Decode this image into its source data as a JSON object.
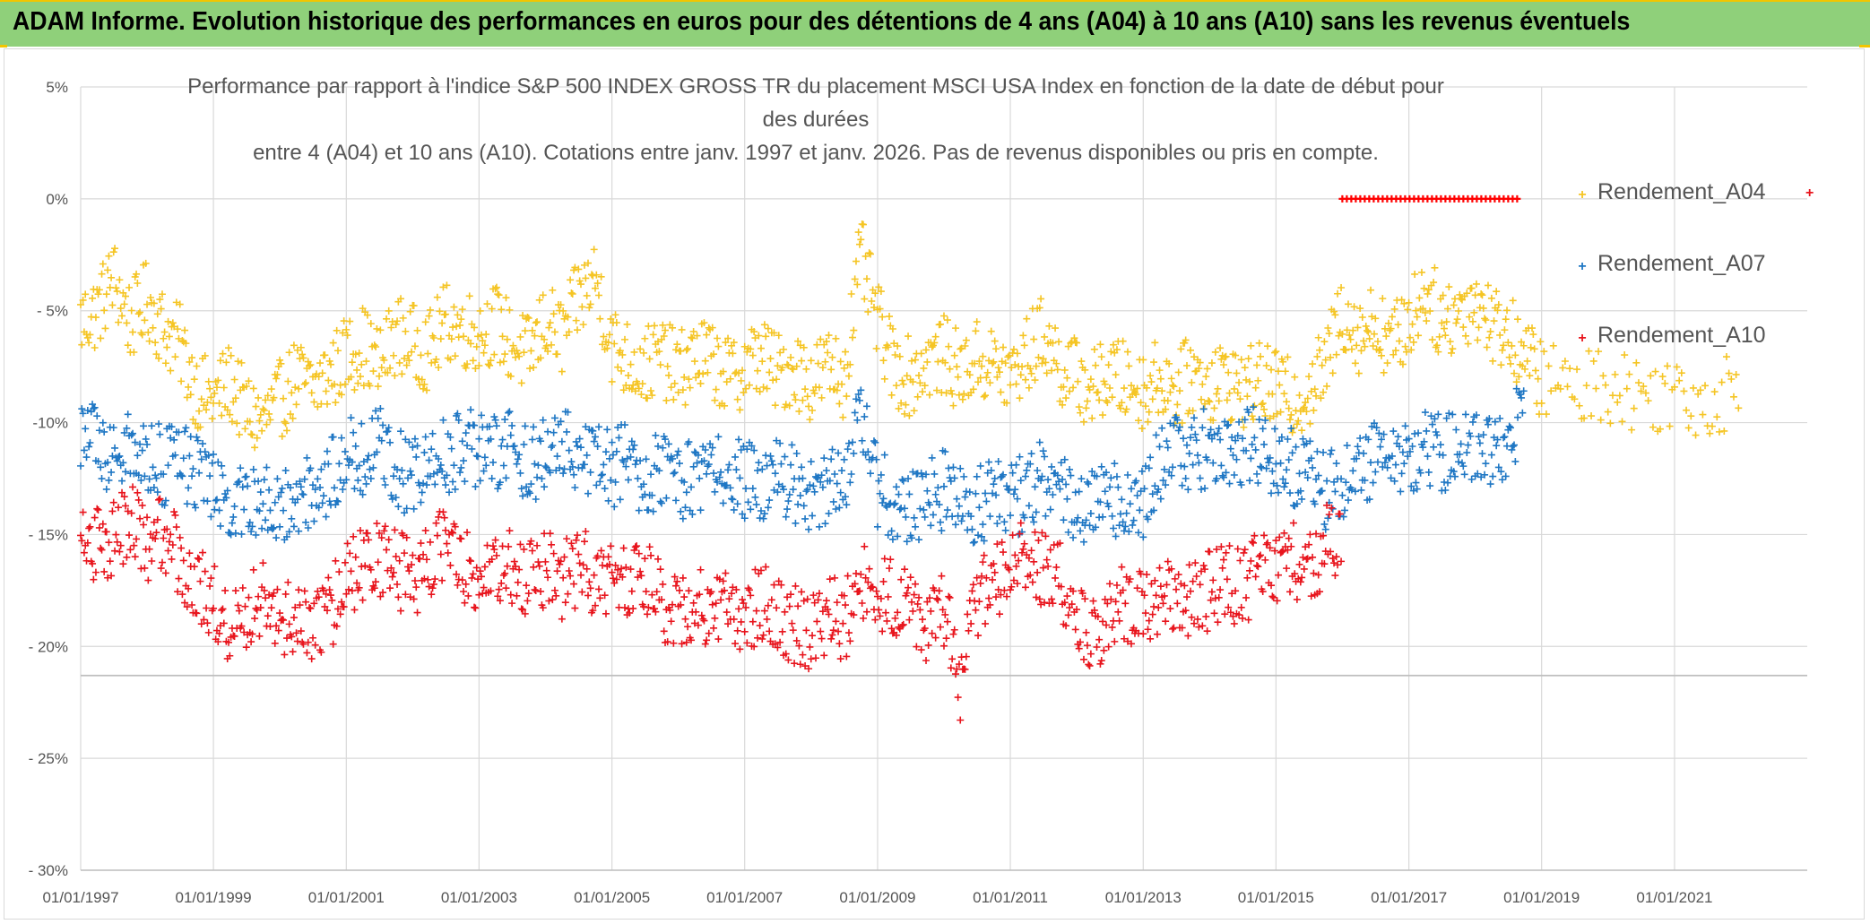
{
  "banner": {
    "title": "ADAM Informe. Evolution historique des performances en euros pour des détentions de 4 ans (A04) à 10 ans (A10) sans les revenus éventuels"
  },
  "chart_data": {
    "type": "scatter",
    "title_line1": "Performance par rapport à l'indice S&P 500 INDEX GROSS TR  du placement MSCI USA Index en fonction de la date de début pour des durées",
    "title_line2": "entre 4 (A04) et 10 ans (A10). Cotations entre janv. 1997 et janv. 2026. Pas de revenus disponibles ou pris en compte.",
    "xlabel": "",
    "ylabel": "",
    "xlim": [
      "1997-01-01",
      "2023-01-01"
    ],
    "ylim": [
      -30,
      5
    ],
    "x_tick_labels": [
      "01/01/1997",
      "01/01/1999",
      "01/01/2001",
      "01/01/2003",
      "01/01/2005",
      "01/01/2007",
      "01/01/2009",
      "01/01/2011",
      "01/01/2013",
      "01/01/2015",
      "01/01/2017",
      "01/01/2019",
      "01/01/2021"
    ],
    "y_ticks": [
      5,
      0,
      -5,
      -10,
      -15,
      -20,
      -25,
      -30
    ],
    "y_tick_labels": [
      "5%",
      "0%",
      "- 5%",
      "-10%",
      "- 15%",
      "- 20%",
      "- 25%",
      "- 30%"
    ],
    "grid": true,
    "legend_position": "top-right",
    "series": [
      {
        "name": "Rendement_A04",
        "color": "#f5c525",
        "marker": "+",
        "points": [
          [
            "1997-01-01",
            -5.5
          ],
          [
            "1997-04-01",
            -5.0
          ],
          [
            "1997-07-01",
            -3.5
          ],
          [
            "1997-10-01",
            -5.5
          ],
          [
            "1998-01-01",
            -4.5
          ],
          [
            "1998-04-01",
            -5.8
          ],
          [
            "1998-07-01",
            -6.5
          ],
          [
            "1998-10-01",
            -8.5
          ],
          [
            "1999-01-01",
            -9.0
          ],
          [
            "1999-04-01",
            -8.2
          ],
          [
            "1999-07-01",
            -9.5
          ],
          [
            "1999-10-01",
            -10.0
          ],
          [
            "2000-01-01",
            -9.0
          ],
          [
            "2000-04-01",
            -8.0
          ],
          [
            "2000-07-01",
            -8.5
          ],
          [
            "2000-10-01",
            -7.8
          ],
          [
            "2001-01-01",
            -7.0
          ],
          [
            "2001-04-01",
            -6.5
          ],
          [
            "2001-07-01",
            -7.5
          ],
          [
            "2001-10-01",
            -6.0
          ],
          [
            "2002-01-01",
            -6.5
          ],
          [
            "2002-04-01",
            -6.8
          ],
          [
            "2002-07-01",
            -5.5
          ],
          [
            "2002-10-01",
            -5.8
          ],
          [
            "2003-01-01",
            -6.0
          ],
          [
            "2003-04-01",
            -5.5
          ],
          [
            "2003-07-01",
            -6.5
          ],
          [
            "2003-10-01",
            -7.0
          ],
          [
            "2004-01-01",
            -5.5
          ],
          [
            "2004-04-01",
            -6.2
          ],
          [
            "2004-07-01",
            -4.5
          ],
          [
            "2004-10-01",
            -3.5
          ],
          [
            "2005-01-01",
            -6.5
          ],
          [
            "2005-04-01",
            -7.2
          ],
          [
            "2005-07-01",
            -7.5
          ],
          [
            "2005-10-01",
            -7.0
          ],
          [
            "2006-01-01",
            -7.8
          ],
          [
            "2006-04-01",
            -7.0
          ],
          [
            "2006-07-01",
            -7.2
          ],
          [
            "2006-10-01",
            -8.0
          ],
          [
            "2007-01-01",
            -7.5
          ],
          [
            "2007-04-01",
            -7.0
          ],
          [
            "2007-07-01",
            -7.8
          ],
          [
            "2007-10-01",
            -7.5
          ],
          [
            "2008-01-01",
            -8.2
          ],
          [
            "2008-04-01",
            -7.5
          ],
          [
            "2008-07-01",
            -8.0
          ],
          [
            "2008-10-01",
            -2.5
          ],
          [
            "2009-01-01",
            -5.5
          ],
          [
            "2009-04-01",
            -7.5
          ],
          [
            "2009-07-01",
            -8.0
          ],
          [
            "2009-10-01",
            -7.2
          ],
          [
            "2010-01-01",
            -7.0
          ],
          [
            "2010-04-01",
            -7.8
          ],
          [
            "2010-07-01",
            -7.2
          ],
          [
            "2010-10-01",
            -7.5
          ],
          [
            "2011-01-01",
            -8.0
          ],
          [
            "2011-04-01",
            -7.0
          ],
          [
            "2011-07-01",
            -6.0
          ],
          [
            "2011-10-01",
            -7.5
          ],
          [
            "2012-01-01",
            -8.0
          ],
          [
            "2012-04-01",
            -8.5
          ],
          [
            "2012-07-01",
            -7.8
          ],
          [
            "2012-10-01",
            -8.2
          ],
          [
            "2013-01-01",
            -8.5
          ],
          [
            "2013-04-01",
            -8.0
          ],
          [
            "2013-07-01",
            -8.5
          ],
          [
            "2013-10-01",
            -7.8
          ],
          [
            "2014-01-01",
            -8.2
          ],
          [
            "2014-04-01",
            -8.0
          ],
          [
            "2014-07-01",
            -8.5
          ],
          [
            "2014-10-01",
            -8.2
          ],
          [
            "2015-01-01",
            -8.5
          ],
          [
            "2015-04-01",
            -9.0
          ],
          [
            "2015-07-01",
            -8.5
          ],
          [
            "2015-10-01",
            -7.5
          ],
          [
            "2016-01-01",
            -5.0
          ],
          [
            "2016-04-01",
            -6.0
          ],
          [
            "2016-07-01",
            -5.5
          ],
          [
            "2016-10-01",
            -6.5
          ],
          [
            "2017-01-01",
            -5.5
          ],
          [
            "2017-04-01",
            -4.0
          ],
          [
            "2017-07-01",
            -5.5
          ],
          [
            "2017-10-01",
            -5.0
          ],
          [
            "2018-01-01",
            -4.5
          ],
          [
            "2018-04-01",
            -5.5
          ],
          [
            "2018-07-01",
            -6.0
          ],
          [
            "2018-10-01",
            -7.0
          ],
          [
            "2019-01-01",
            -8.0
          ],
          [
            "2019-07-01",
            -8.5
          ],
          [
            "2020-01-01",
            -8.2
          ],
          [
            "2020-07-01",
            -8.8
          ],
          [
            "2021-01-01",
            -8.5
          ],
          [
            "2021-07-01",
            -9.0
          ],
          [
            "2022-01-01",
            -8.5
          ]
        ]
      },
      {
        "name": "Rendement_A07",
        "color": "#1f77c4",
        "marker": "+",
        "points": [
          [
            "1997-01-01",
            -10.5
          ],
          [
            "1997-04-01",
            -11.0
          ],
          [
            "1997-07-01",
            -11.5
          ],
          [
            "1997-10-01",
            -11.0
          ],
          [
            "1998-01-01",
            -11.5
          ],
          [
            "1998-04-01",
            -12.0
          ],
          [
            "1998-07-01",
            -11.8
          ],
          [
            "1998-10-01",
            -12.2
          ],
          [
            "1999-01-01",
            -13.0
          ],
          [
            "1999-04-01",
            -13.5
          ],
          [
            "1999-07-01",
            -14.0
          ],
          [
            "1999-10-01",
            -13.0
          ],
          [
            "2000-01-01",
            -14.0
          ],
          [
            "2000-04-01",
            -13.5
          ],
          [
            "2000-07-01",
            -13.0
          ],
          [
            "2000-10-01",
            -12.5
          ],
          [
            "2001-01-01",
            -11.0
          ],
          [
            "2001-04-01",
            -11.5
          ],
          [
            "2001-07-01",
            -11.0
          ],
          [
            "2001-10-01",
            -12.0
          ],
          [
            "2002-01-01",
            -12.5
          ],
          [
            "2002-04-01",
            -11.8
          ],
          [
            "2002-07-01",
            -11.5
          ],
          [
            "2002-10-01",
            -11.0
          ],
          [
            "2003-01-01",
            -11.2
          ],
          [
            "2003-04-01",
            -11.5
          ],
          [
            "2003-07-01",
            -11.0
          ],
          [
            "2003-10-01",
            -11.8
          ],
          [
            "2004-01-01",
            -11.5
          ],
          [
            "2004-04-01",
            -11.0
          ],
          [
            "2004-07-01",
            -11.2
          ],
          [
            "2004-10-01",
            -11.5
          ],
          [
            "2005-01-01",
            -12.0
          ],
          [
            "2005-04-01",
            -11.8
          ],
          [
            "2005-07-01",
            -12.5
          ],
          [
            "2005-10-01",
            -12.2
          ],
          [
            "2006-01-01",
            -12.8
          ],
          [
            "2006-04-01",
            -12.5
          ],
          [
            "2006-07-01",
            -12.0
          ],
          [
            "2006-10-01",
            -12.5
          ],
          [
            "2007-01-01",
            -12.5
          ],
          [
            "2007-04-01",
            -13.0
          ],
          [
            "2007-07-01",
            -12.5
          ],
          [
            "2007-10-01",
            -12.8
          ],
          [
            "2008-01-01",
            -13.5
          ],
          [
            "2008-04-01",
            -13.0
          ],
          [
            "2008-07-01",
            -12.5
          ],
          [
            "2008-10-01",
            -9.0
          ],
          [
            "2009-01-01",
            -13.0
          ],
          [
            "2009-04-01",
            -13.5
          ],
          [
            "2009-07-01",
            -14.0
          ],
          [
            "2009-10-01",
            -13.5
          ],
          [
            "2010-01-01",
            -13.0
          ],
          [
            "2010-04-01",
            -13.5
          ],
          [
            "2010-07-01",
            -13.8
          ],
          [
            "2010-10-01",
            -13.2
          ],
          [
            "2011-01-01",
            -13.5
          ],
          [
            "2011-04-01",
            -13.0
          ],
          [
            "2011-07-01",
            -12.5
          ],
          [
            "2011-10-01",
            -13.0
          ],
          [
            "2012-01-01",
            -13.5
          ],
          [
            "2012-04-01",
            -13.8
          ],
          [
            "2012-07-01",
            -13.2
          ],
          [
            "2012-10-01",
            -14.0
          ],
          [
            "2013-01-01",
            -13.5
          ],
          [
            "2013-04-01",
            -12.0
          ],
          [
            "2013-07-01",
            -11.0
          ],
          [
            "2013-10-01",
            -11.5
          ],
          [
            "2014-01-01",
            -11.0
          ],
          [
            "2014-04-01",
            -11.5
          ],
          [
            "2014-07-01",
            -11.2
          ],
          [
            "2014-10-01",
            -11.0
          ],
          [
            "2015-01-01",
            -11.5
          ],
          [
            "2015-04-01",
            -12.0
          ],
          [
            "2015-07-01",
            -12.5
          ],
          [
            "2015-10-01",
            -13.0
          ],
          [
            "2016-01-01",
            -12.5
          ],
          [
            "2016-04-01",
            -12.0
          ],
          [
            "2016-07-01",
            -11.5
          ],
          [
            "2016-10-01",
            -12.0
          ],
          [
            "2017-01-01",
            -11.5
          ],
          [
            "2017-04-01",
            -11.0
          ],
          [
            "2017-07-01",
            -11.5
          ],
          [
            "2017-10-01",
            -11.2
          ],
          [
            "2018-01-01",
            -11.0
          ],
          [
            "2018-04-01",
            -11.5
          ],
          [
            "2018-07-01",
            -10.5
          ],
          [
            "2018-10-01",
            -10.0
          ]
        ]
      },
      {
        "name": "Rendement_A10",
        "color": "#e8151d",
        "marker": "+",
        "points": [
          [
            "1997-01-01",
            -15.0
          ],
          [
            "1997-04-01",
            -15.5
          ],
          [
            "1997-07-01",
            -15.0
          ],
          [
            "1997-10-01",
            -14.5
          ],
          [
            "1998-01-01",
            -15.5
          ],
          [
            "1998-04-01",
            -15.0
          ],
          [
            "1998-07-01",
            -16.0
          ],
          [
            "1998-10-01",
            -17.0
          ],
          [
            "1999-01-01",
            -18.0
          ],
          [
            "1999-04-01",
            -19.0
          ],
          [
            "1999-07-01",
            -18.5
          ],
          [
            "1999-10-01",
            -18.0
          ],
          [
            "2000-01-01",
            -19.0
          ],
          [
            "2000-04-01",
            -18.5
          ],
          [
            "2000-07-01",
            -19.5
          ],
          [
            "2000-10-01",
            -18.5
          ],
          [
            "2001-01-01",
            -17.0
          ],
          [
            "2001-04-01",
            -16.5
          ],
          [
            "2001-07-01",
            -16.0
          ],
          [
            "2001-10-01",
            -16.5
          ],
          [
            "2002-01-01",
            -17.0
          ],
          [
            "2002-04-01",
            -16.0
          ],
          [
            "2002-07-01",
            -15.5
          ],
          [
            "2002-10-01",
            -16.5
          ],
          [
            "2003-01-01",
            -16.5
          ],
          [
            "2003-04-01",
            -17.0
          ],
          [
            "2003-07-01",
            -16.5
          ],
          [
            "2003-10-01",
            -17.0
          ],
          [
            "2004-01-01",
            -16.5
          ],
          [
            "2004-04-01",
            -17.0
          ],
          [
            "2004-07-01",
            -16.5
          ],
          [
            "2004-10-01",
            -16.8
          ],
          [
            "2005-01-01",
            -17.0
          ],
          [
            "2005-04-01",
            -17.5
          ],
          [
            "2005-07-01",
            -17.0
          ],
          [
            "2005-10-01",
            -18.0
          ],
          [
            "2006-01-01",
            -18.5
          ],
          [
            "2006-04-01",
            -18.0
          ],
          [
            "2006-07-01",
            -18.5
          ],
          [
            "2006-10-01",
            -18.0
          ],
          [
            "2007-01-01",
            -18.5
          ],
          [
            "2007-04-01",
            -18.0
          ],
          [
            "2007-07-01",
            -18.5
          ],
          [
            "2007-10-01",
            -19.0
          ],
          [
            "2008-01-01",
            -19.5
          ],
          [
            "2008-04-01",
            -18.5
          ],
          [
            "2008-07-01",
            -19.0
          ],
          [
            "2008-10-01",
            -17.0
          ],
          [
            "2009-01-01",
            -17.5
          ],
          [
            "2009-04-01",
            -18.0
          ],
          [
            "2009-07-01",
            -18.5
          ],
          [
            "2009-10-01",
            -19.0
          ],
          [
            "2010-01-01",
            -18.5
          ],
          [
            "2010-04-01",
            -21.5
          ],
          [
            "2010-07-01",
            -18.0
          ],
          [
            "2010-10-01",
            -17.0
          ],
          [
            "2011-01-01",
            -16.5
          ],
          [
            "2011-04-01",
            -16.0
          ],
          [
            "2011-07-01",
            -16.5
          ],
          [
            "2011-10-01",
            -17.0
          ],
          [
            "2012-01-01",
            -18.5
          ],
          [
            "2012-04-01",
            -19.5
          ],
          [
            "2012-07-01",
            -18.5
          ],
          [
            "2012-10-01",
            -18.0
          ],
          [
            "2013-01-01",
            -18.5
          ],
          [
            "2013-04-01",
            -18.0
          ],
          [
            "2013-07-01",
            -17.5
          ],
          [
            "2013-10-01",
            -18.0
          ],
          [
            "2014-01-01",
            -17.5
          ],
          [
            "2014-04-01",
            -17.0
          ],
          [
            "2014-07-01",
            -17.5
          ],
          [
            "2014-10-01",
            -16.5
          ],
          [
            "2015-01-01",
            -16.5
          ],
          [
            "2015-04-01",
            -16.0
          ],
          [
            "2015-07-01",
            -16.5
          ],
          [
            "2015-10-01",
            -15.5
          ],
          [
            "2016-01-01",
            -15.0
          ]
        ]
      }
    ],
    "marked_line": {
      "color": "#ff0000",
      "y": 0,
      "x": [
        "2016-01-01",
        "2018-09-01"
      ]
    }
  }
}
